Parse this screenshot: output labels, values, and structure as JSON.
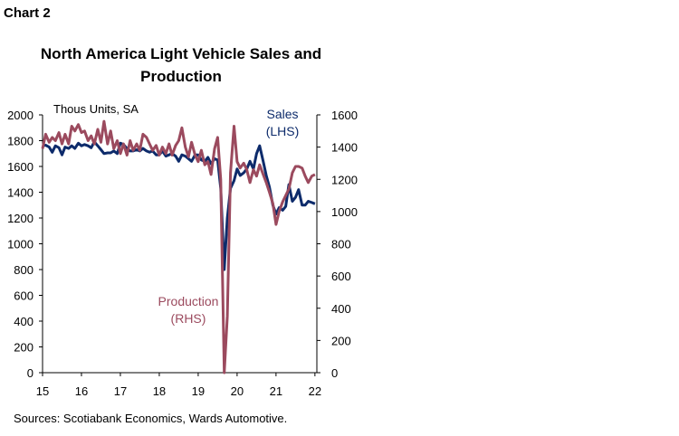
{
  "header": {
    "chart_label": "Chart 2",
    "title_line1": "North America Light Vehicle Sales and",
    "title_line2": "Production"
  },
  "footer": {
    "source": "Sources: Scotiabank Economics, Wards Automotive."
  },
  "chart_data": {
    "type": "line",
    "title": "North America Light Vehicle Sales and Production",
    "units_label": "Thous Units, SA",
    "x_ticks": [
      "15",
      "16",
      "17",
      "18",
      "19",
      "20",
      "21",
      "22"
    ],
    "xlim": [
      2015,
      2022.05
    ],
    "left_axis": {
      "ylim": [
        0,
        2000
      ],
      "ticks": [
        0,
        200,
        400,
        600,
        800,
        1000,
        1200,
        1400,
        1600,
        1800,
        2000
      ]
    },
    "right_axis": {
      "ylim": [
        0,
        1600
      ],
      "ticks": [
        0,
        200,
        400,
        600,
        800,
        1000,
        1200,
        1400,
        1600
      ]
    },
    "series": [
      {
        "name": "Sales",
        "label_lines": [
          "Sales",
          "(LHS)"
        ],
        "axis": "left",
        "color": "#0d2b6b",
        "points": [
          [
            2015.0,
            1760
          ],
          [
            2015.08,
            1765
          ],
          [
            2015.17,
            1750
          ],
          [
            2015.25,
            1710
          ],
          [
            2015.33,
            1760
          ],
          [
            2015.42,
            1745
          ],
          [
            2015.5,
            1690
          ],
          [
            2015.58,
            1750
          ],
          [
            2015.67,
            1740
          ],
          [
            2015.75,
            1760
          ],
          [
            2015.83,
            1740
          ],
          [
            2015.92,
            1780
          ],
          [
            2016.0,
            1760
          ],
          [
            2016.08,
            1770
          ],
          [
            2016.17,
            1760
          ],
          [
            2016.25,
            1745
          ],
          [
            2016.33,
            1790
          ],
          [
            2016.42,
            1760
          ],
          [
            2016.5,
            1730
          ],
          [
            2016.58,
            1700
          ],
          [
            2016.67,
            1705
          ],
          [
            2016.75,
            1705
          ],
          [
            2016.83,
            1720
          ],
          [
            2016.92,
            1700
          ],
          [
            2017.0,
            1780
          ],
          [
            2017.08,
            1770
          ],
          [
            2017.17,
            1740
          ],
          [
            2017.25,
            1720
          ],
          [
            2017.33,
            1720
          ],
          [
            2017.42,
            1730
          ],
          [
            2017.5,
            1720
          ],
          [
            2017.58,
            1740
          ],
          [
            2017.67,
            1720
          ],
          [
            2017.75,
            1710
          ],
          [
            2017.83,
            1720
          ],
          [
            2017.92,
            1690
          ],
          [
            2018.0,
            1690
          ],
          [
            2018.08,
            1720
          ],
          [
            2018.17,
            1680
          ],
          [
            2018.25,
            1690
          ],
          [
            2018.33,
            1700
          ],
          [
            2018.42,
            1680
          ],
          [
            2018.5,
            1640
          ],
          [
            2018.58,
            1690
          ],
          [
            2018.67,
            1680
          ],
          [
            2018.75,
            1660
          ],
          [
            2018.83,
            1640
          ],
          [
            2018.92,
            1690
          ],
          [
            2019.0,
            1690
          ],
          [
            2019.08,
            1650
          ],
          [
            2019.17,
            1640
          ],
          [
            2019.25,
            1670
          ],
          [
            2019.33,
            1620
          ],
          [
            2019.42,
            1660
          ],
          [
            2019.5,
            1650
          ],
          [
            2019.58,
            1430
          ],
          [
            2019.67,
            800
          ],
          [
            2019.75,
            1200
          ],
          [
            2019.83,
            1430
          ],
          [
            2019.92,
            1490
          ],
          [
            2020.0,
            1580
          ],
          [
            2020.08,
            1530
          ],
          [
            2020.17,
            1550
          ],
          [
            2020.25,
            1580
          ],
          [
            2020.33,
            1640
          ],
          [
            2020.42,
            1580
          ],
          [
            2020.5,
            1700
          ],
          [
            2020.58,
            1760
          ],
          [
            2020.67,
            1640
          ],
          [
            2020.75,
            1530
          ],
          [
            2020.83,
            1440
          ],
          [
            2020.92,
            1300
          ],
          [
            2021.0,
            1230
          ],
          [
            2021.08,
            1280
          ],
          [
            2021.17,
            1260
          ],
          [
            2021.25,
            1290
          ],
          [
            2021.33,
            1460
          ],
          [
            2021.42,
            1330
          ],
          [
            2021.5,
            1360
          ],
          [
            2021.58,
            1420
          ],
          [
            2021.67,
            1300
          ],
          [
            2021.75,
            1300
          ],
          [
            2021.83,
            1330
          ],
          [
            2021.92,
            1320
          ],
          [
            2022.0,
            1310
          ]
        ]
      },
      {
        "name": "Production",
        "label_lines": [
          "Production",
          "(RHS)"
        ],
        "axis": "right",
        "color": "#9b4a5e",
        "points": [
          [
            2015.0,
            1390
          ],
          [
            2015.08,
            1480
          ],
          [
            2015.17,
            1430
          ],
          [
            2015.25,
            1460
          ],
          [
            2015.33,
            1440
          ],
          [
            2015.42,
            1490
          ],
          [
            2015.5,
            1420
          ],
          [
            2015.58,
            1480
          ],
          [
            2015.67,
            1420
          ],
          [
            2015.75,
            1530
          ],
          [
            2015.83,
            1500
          ],
          [
            2015.92,
            1540
          ],
          [
            2016.0,
            1490
          ],
          [
            2016.08,
            1500
          ],
          [
            2016.17,
            1440
          ],
          [
            2016.25,
            1470
          ],
          [
            2016.33,
            1420
          ],
          [
            2016.42,
            1510
          ],
          [
            2016.5,
            1430
          ],
          [
            2016.58,
            1560
          ],
          [
            2016.67,
            1420
          ],
          [
            2016.75,
            1500
          ],
          [
            2016.83,
            1390
          ],
          [
            2016.92,
            1440
          ],
          [
            2017.0,
            1360
          ],
          [
            2017.08,
            1420
          ],
          [
            2017.17,
            1350
          ],
          [
            2017.25,
            1440
          ],
          [
            2017.33,
            1380
          ],
          [
            2017.42,
            1420
          ],
          [
            2017.5,
            1380
          ],
          [
            2017.58,
            1480
          ],
          [
            2017.67,
            1460
          ],
          [
            2017.75,
            1420
          ],
          [
            2017.83,
            1380
          ],
          [
            2017.92,
            1410
          ],
          [
            2018.0,
            1350
          ],
          [
            2018.08,
            1400
          ],
          [
            2018.17,
            1360
          ],
          [
            2018.25,
            1420
          ],
          [
            2018.33,
            1350
          ],
          [
            2018.42,
            1410
          ],
          [
            2018.5,
            1440
          ],
          [
            2018.58,
            1520
          ],
          [
            2018.67,
            1400
          ],
          [
            2018.75,
            1340
          ],
          [
            2018.83,
            1430
          ],
          [
            2018.92,
            1350
          ],
          [
            2019.0,
            1310
          ],
          [
            2019.08,
            1380
          ],
          [
            2019.17,
            1290
          ],
          [
            2019.25,
            1310
          ],
          [
            2019.33,
            1230
          ],
          [
            2019.42,
            1390
          ],
          [
            2019.5,
            1460
          ],
          [
            2019.58,
            1200
          ],
          [
            2019.67,
            0
          ],
          [
            2019.75,
            350
          ],
          [
            2019.83,
            1240
          ],
          [
            2019.92,
            1530
          ],
          [
            2020.0,
            1310
          ],
          [
            2020.08,
            1270
          ],
          [
            2020.17,
            1300
          ],
          [
            2020.25,
            1260
          ],
          [
            2020.33,
            1180
          ],
          [
            2020.42,
            1260
          ],
          [
            2020.5,
            1220
          ],
          [
            2020.58,
            1290
          ],
          [
            2020.67,
            1230
          ],
          [
            2020.75,
            1180
          ],
          [
            2020.83,
            1120
          ],
          [
            2020.92,
            1050
          ],
          [
            2021.0,
            920
          ],
          [
            2021.08,
            1000
          ],
          [
            2021.17,
            1060
          ],
          [
            2021.25,
            1100
          ],
          [
            2021.33,
            1140
          ],
          [
            2021.42,
            1240
          ],
          [
            2021.5,
            1280
          ],
          [
            2021.58,
            1280
          ],
          [
            2021.67,
            1270
          ],
          [
            2021.75,
            1220
          ],
          [
            2021.83,
            1180
          ],
          [
            2021.92,
            1220
          ],
          [
            2022.0,
            1230
          ]
        ]
      }
    ],
    "grid": false,
    "legend": "inline labels"
  }
}
